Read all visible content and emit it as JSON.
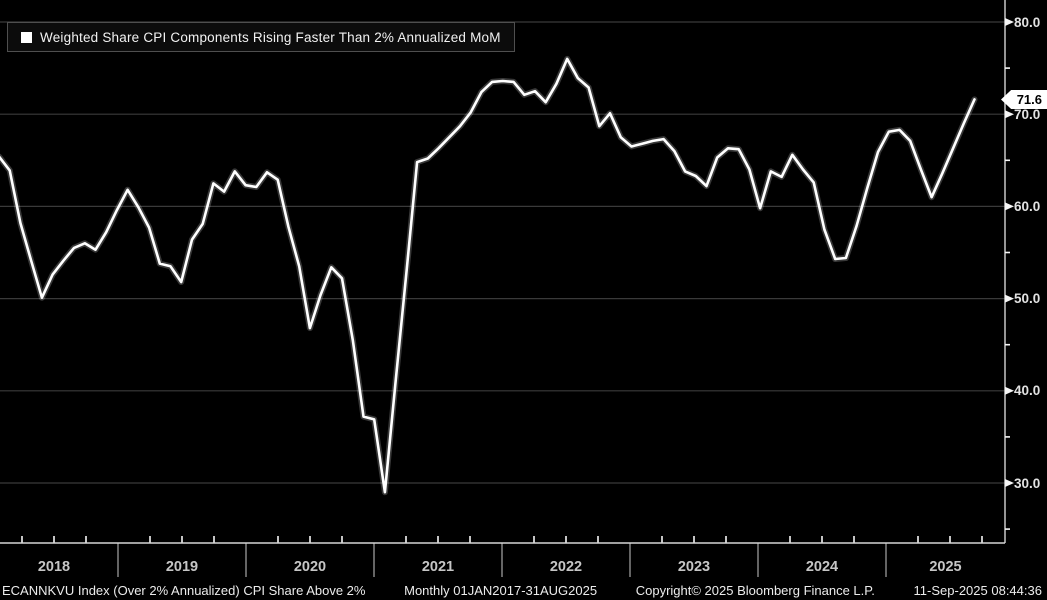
{
  "colors": {
    "background": "#000000",
    "line": "#ffffff",
    "grid": "#3a3a3a",
    "axis": "#d6d6d6",
    "tick": "#f5f5f5",
    "separator": "#a8a8a8",
    "badge_bg": "#ffffff",
    "badge_text": "#000000"
  },
  "legend": {
    "label": "Weighted Share CPI Components Rising Faster Than 2% Annualized MoM",
    "marker_color": "#ffffff"
  },
  "last_value": {
    "label": "71.6",
    "value": 71.6
  },
  "y_axis": {
    "tick_labels": [
      "80.0",
      "70.0",
      "60.0",
      "50.0",
      "40.0",
      "30.0"
    ]
  },
  "x_axis": {
    "years": [
      "2018",
      "2019",
      "2020",
      "2021",
      "2022",
      "2023",
      "2024",
      "2025"
    ]
  },
  "status_bar": {
    "segments": [
      "ECANNKVU Index (Over 2% Annualized) CPI Share Above 2%",
      "Monthly 01JAN2017-31AUG2025",
      "Copyright© 2025 Bloomberg Finance L.P.",
      "11-Sep-2025 08:44:36"
    ]
  },
  "chart_data": {
    "type": "line",
    "title": "Weighted Share CPI Components Rising Faster Than 2% Annualized MoM",
    "ticker": "ECANNKVU Index",
    "frequency": "monthly",
    "x_start": "2018-01",
    "x_end": "2025-08",
    "ylim": [
      23.5,
      82.5
    ],
    "y_ticks": [
      80,
      70,
      60,
      50,
      40,
      30
    ],
    "y_minor_ticks": [
      75,
      65,
      55,
      45,
      35,
      25
    ],
    "grid": true,
    "legend_position": "top-left",
    "last_value": 71.6,
    "series": [
      {
        "name": "Weighted Share CPI Components Rising Faster Than 2% Annualized MoM",
        "values": [
          65.4,
          63.9,
          58.2,
          54.1,
          50.1,
          52.6,
          54.1,
          55.5,
          56.0,
          55.3,
          57.2,
          59.6,
          61.8,
          59.9,
          57.7,
          53.8,
          53.5,
          51.8,
          56.4,
          58.1,
          62.5,
          61.6,
          63.8,
          62.3,
          62.1,
          63.7,
          62.9,
          57.8,
          53.5,
          46.8,
          50.4,
          53.4,
          52.2,
          45.5,
          37.2,
          36.9,
          29.0,
          41.0,
          52.8,
          64.8,
          65.2,
          66.3,
          67.5,
          68.7,
          70.2,
          72.4,
          73.5,
          73.6,
          73.5,
          72.1,
          72.5,
          71.3,
          73.3,
          76.0,
          73.9,
          72.9,
          68.7,
          70.1,
          67.5,
          66.5,
          66.8,
          67.1,
          67.3,
          66.0,
          63.8,
          63.3,
          62.2,
          65.3,
          66.3,
          66.2,
          64.0,
          59.8,
          63.8,
          63.2,
          65.6,
          64.0,
          62.6,
          57.5,
          54.3,
          54.4,
          57.9,
          62.0,
          65.9,
          68.1,
          68.3,
          67.1,
          64.0,
          61.0,
          63.6,
          66.3,
          69.0,
          71.6
        ]
      }
    ]
  }
}
